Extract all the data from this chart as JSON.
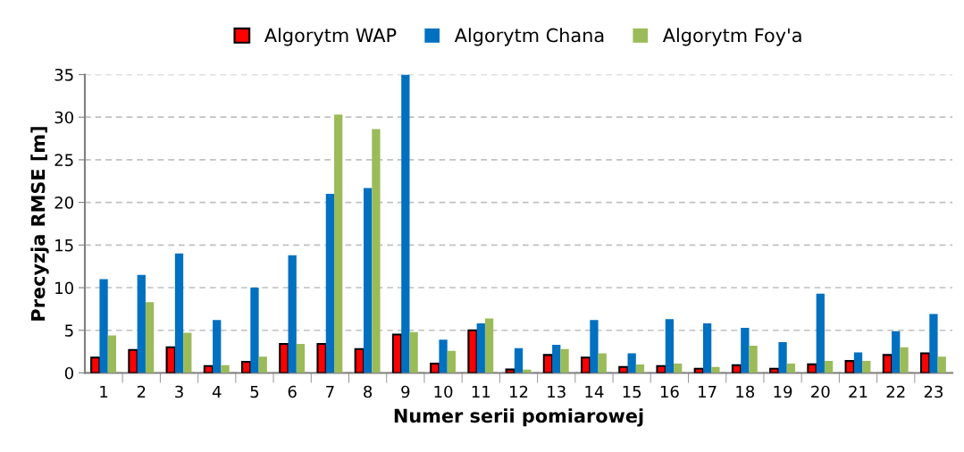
{
  "chart_data": {
    "type": "bar",
    "xlabel": "Numer serii pomiarowej",
    "ylabel": "Precyzja RMSE [m]",
    "categories": [
      "1",
      "2",
      "3",
      "4",
      "5",
      "6",
      "7",
      "8",
      "9",
      "10",
      "11",
      "12",
      "13",
      "14",
      "15",
      "16",
      "17",
      "18",
      "19",
      "20",
      "21",
      "22",
      "23"
    ],
    "series": [
      {
        "name": "Algorytm WAP",
        "color": "#ff0000",
        "values": [
          1.8,
          2.7,
          3.0,
          0.8,
          1.3,
          3.4,
          3.4,
          2.8,
          4.5,
          1.1,
          5.0,
          0.4,
          2.1,
          1.8,
          0.7,
          0.8,
          0.5,
          0.9,
          0.5,
          1.0,
          1.4,
          2.1,
          2.3
        ]
      },
      {
        "name": "Algorytm Chana",
        "color": "#0070c0",
        "values": [
          11.0,
          11.5,
          14.0,
          6.2,
          10.0,
          13.8,
          21.0,
          21.7,
          35.0,
          3.9,
          5.8,
          2.9,
          3.3,
          6.2,
          2.3,
          6.3,
          5.8,
          5.3,
          3.6,
          9.3,
          2.4,
          4.9,
          6.9
        ]
      },
      {
        "name": "Algorytm Foy'a",
        "color": "#9bbb59",
        "values": [
          4.4,
          8.3,
          4.7,
          0.9,
          1.9,
          3.4,
          30.3,
          28.6,
          4.8,
          2.6,
          6.4,
          0.4,
          2.8,
          2.3,
          1.0,
          1.1,
          0.7,
          3.2,
          1.1,
          1.4,
          1.4,
          3.0,
          1.9
        ]
      }
    ],
    "ylim": [
      0,
      35
    ],
    "yticks": [
      0,
      5,
      10,
      15,
      20,
      25,
      30,
      35
    ],
    "grid": "y",
    "legend": "top"
  }
}
